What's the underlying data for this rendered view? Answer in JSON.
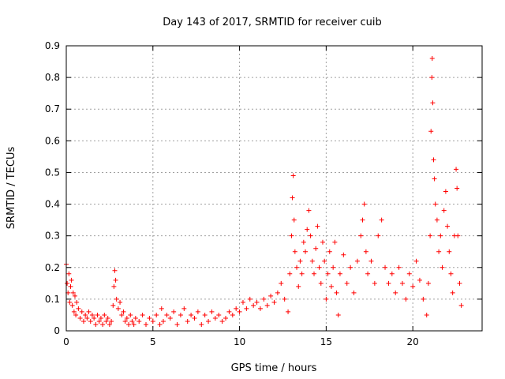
{
  "chart_data": {
    "type": "scatter",
    "title": "Day 143 of 2017, SRMTID for receiver cuib",
    "xlabel": "GPS time / hours",
    "ylabel": "SRMTID / TECUs",
    "xlim": [
      0,
      24
    ],
    "ylim": [
      0,
      0.9
    ],
    "x_ticks": [
      0,
      5,
      10,
      15,
      20
    ],
    "y_ticks": [
      0,
      0.1,
      0.2,
      0.3,
      0.4,
      0.5,
      0.6,
      0.7,
      0.8,
      0.9
    ],
    "x_tick_labels": [
      "0",
      "5",
      "10",
      "15",
      "20"
    ],
    "y_tick_labels": [
      "0",
      "0.1",
      "0.2",
      "0.3",
      "0.4",
      "0.5",
      "0.6",
      "0.7",
      "0.8",
      "0.9"
    ],
    "grid": true,
    "marker": "+",
    "color": "#ff0000",
    "series": [
      {
        "name": "SRMTID",
        "points": [
          [
            0.0,
            0.21
          ],
          [
            0.05,
            0.15
          ],
          [
            0.1,
            0.12
          ],
          [
            0.15,
            0.18
          ],
          [
            0.2,
            0.09
          ],
          [
            0.25,
            0.14
          ],
          [
            0.3,
            0.16
          ],
          [
            0.35,
            0.08
          ],
          [
            0.4,
            0.12
          ],
          [
            0.45,
            0.06
          ],
          [
            0.5,
            0.11
          ],
          [
            0.55,
            0.05
          ],
          [
            0.6,
            0.09
          ],
          [
            0.7,
            0.07
          ],
          [
            0.8,
            0.04
          ],
          [
            0.9,
            0.06
          ],
          [
            1.0,
            0.03
          ],
          [
            1.1,
            0.05
          ],
          [
            1.2,
            0.04
          ],
          [
            1.3,
            0.06
          ],
          [
            1.4,
            0.03
          ],
          [
            1.5,
            0.05
          ],
          [
            1.6,
            0.04
          ],
          [
            1.7,
            0.02
          ],
          [
            1.8,
            0.05
          ],
          [
            1.9,
            0.03
          ],
          [
            2.0,
            0.04
          ],
          [
            2.1,
            0.02
          ],
          [
            2.2,
            0.05
          ],
          [
            2.3,
            0.03
          ],
          [
            2.4,
            0.04
          ],
          [
            2.5,
            0.02
          ],
          [
            2.6,
            0.03
          ],
          [
            2.7,
            0.08
          ],
          [
            2.75,
            0.14
          ],
          [
            2.8,
            0.19
          ],
          [
            2.85,
            0.16
          ],
          [
            2.9,
            0.1
          ],
          [
            3.0,
            0.07
          ],
          [
            3.1,
            0.09
          ],
          [
            3.2,
            0.05
          ],
          [
            3.3,
            0.06
          ],
          [
            3.4,
            0.03
          ],
          [
            3.5,
            0.04
          ],
          [
            3.6,
            0.02
          ],
          [
            3.7,
            0.05
          ],
          [
            3.8,
            0.03
          ],
          [
            3.9,
            0.02
          ],
          [
            4.0,
            0.04
          ],
          [
            4.2,
            0.03
          ],
          [
            4.4,
            0.05
          ],
          [
            4.6,
            0.02
          ],
          [
            4.8,
            0.04
          ],
          [
            5.0,
            0.03
          ],
          [
            5.2,
            0.05
          ],
          [
            5.4,
            0.02
          ],
          [
            5.5,
            0.07
          ],
          [
            5.6,
            0.03
          ],
          [
            5.8,
            0.05
          ],
          [
            6.0,
            0.04
          ],
          [
            6.2,
            0.06
          ],
          [
            6.4,
            0.02
          ],
          [
            6.6,
            0.05
          ],
          [
            6.8,
            0.07
          ],
          [
            7.0,
            0.03
          ],
          [
            7.2,
            0.05
          ],
          [
            7.4,
            0.04
          ],
          [
            7.6,
            0.06
          ],
          [
            7.8,
            0.02
          ],
          [
            8.0,
            0.05
          ],
          [
            8.2,
            0.03
          ],
          [
            8.4,
            0.06
          ],
          [
            8.6,
            0.04
          ],
          [
            8.8,
            0.05
          ],
          [
            9.0,
            0.03
          ],
          [
            9.2,
            0.04
          ],
          [
            9.4,
            0.06
          ],
          [
            9.6,
            0.05
          ],
          [
            9.8,
            0.07
          ],
          [
            10.0,
            0.06
          ],
          [
            10.2,
            0.09
          ],
          [
            10.4,
            0.07
          ],
          [
            10.6,
            0.1
          ],
          [
            10.8,
            0.08
          ],
          [
            11.0,
            0.09
          ],
          [
            11.2,
            0.07
          ],
          [
            11.4,
            0.1
          ],
          [
            11.6,
            0.08
          ],
          [
            11.8,
            0.11
          ],
          [
            12.0,
            0.09
          ],
          [
            12.2,
            0.12
          ],
          [
            12.4,
            0.15
          ],
          [
            12.6,
            0.1
          ],
          [
            12.8,
            0.06
          ],
          [
            12.9,
            0.18
          ],
          [
            13.0,
            0.3
          ],
          [
            13.05,
            0.42
          ],
          [
            13.1,
            0.49
          ],
          [
            13.15,
            0.35
          ],
          [
            13.2,
            0.25
          ],
          [
            13.3,
            0.2
          ],
          [
            13.4,
            0.14
          ],
          [
            13.5,
            0.22
          ],
          [
            13.6,
            0.18
          ],
          [
            13.7,
            0.28
          ],
          [
            13.8,
            0.25
          ],
          [
            13.9,
            0.32
          ],
          [
            14.0,
            0.38
          ],
          [
            14.1,
            0.3
          ],
          [
            14.2,
            0.22
          ],
          [
            14.3,
            0.18
          ],
          [
            14.4,
            0.26
          ],
          [
            14.5,
            0.33
          ],
          [
            14.6,
            0.2
          ],
          [
            14.7,
            0.15
          ],
          [
            14.8,
            0.28
          ],
          [
            14.9,
            0.22
          ],
          [
            15.0,
            0.1
          ],
          [
            15.1,
            0.18
          ],
          [
            15.2,
            0.25
          ],
          [
            15.3,
            0.14
          ],
          [
            15.4,
            0.2
          ],
          [
            15.5,
            0.28
          ],
          [
            15.6,
            0.12
          ],
          [
            15.7,
            0.05
          ],
          [
            15.8,
            0.18
          ],
          [
            16.0,
            0.24
          ],
          [
            16.2,
            0.15
          ],
          [
            16.4,
            0.2
          ],
          [
            16.6,
            0.12
          ],
          [
            16.8,
            0.22
          ],
          [
            17.0,
            0.3
          ],
          [
            17.1,
            0.35
          ],
          [
            17.2,
            0.4
          ],
          [
            17.3,
            0.25
          ],
          [
            17.4,
            0.18
          ],
          [
            17.6,
            0.22
          ],
          [
            17.8,
            0.15
          ],
          [
            18.0,
            0.3
          ],
          [
            18.2,
            0.35
          ],
          [
            18.4,
            0.2
          ],
          [
            18.6,
            0.15
          ],
          [
            18.8,
            0.18
          ],
          [
            19.0,
            0.12
          ],
          [
            19.2,
            0.2
          ],
          [
            19.4,
            0.15
          ],
          [
            19.6,
            0.1
          ],
          [
            19.8,
            0.18
          ],
          [
            20.0,
            0.14
          ],
          [
            20.2,
            0.22
          ],
          [
            20.4,
            0.16
          ],
          [
            20.6,
            0.1
          ],
          [
            20.8,
            0.05
          ],
          [
            20.9,
            0.15
          ],
          [
            21.0,
            0.3
          ],
          [
            21.05,
            0.63
          ],
          [
            21.1,
            0.8
          ],
          [
            21.12,
            0.86
          ],
          [
            21.15,
            0.72
          ],
          [
            21.2,
            0.54
          ],
          [
            21.25,
            0.48
          ],
          [
            21.3,
            0.4
          ],
          [
            21.4,
            0.35
          ],
          [
            21.5,
            0.25
          ],
          [
            21.6,
            0.3
          ],
          [
            21.7,
            0.2
          ],
          [
            21.8,
            0.38
          ],
          [
            21.9,
            0.44
          ],
          [
            22.0,
            0.33
          ],
          [
            22.1,
            0.25
          ],
          [
            22.2,
            0.18
          ],
          [
            22.3,
            0.12
          ],
          [
            22.4,
            0.3
          ],
          [
            22.5,
            0.51
          ],
          [
            22.55,
            0.45
          ],
          [
            22.6,
            0.3
          ],
          [
            22.7,
            0.15
          ],
          [
            22.8,
            0.08
          ]
        ]
      }
    ]
  }
}
